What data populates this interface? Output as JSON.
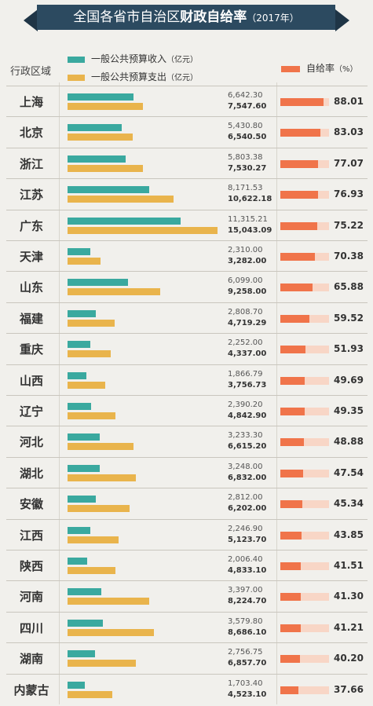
{
  "header": {
    "title_prefix": "全国各省市自治区",
    "title_emph": "财政自给率",
    "title_year": "（2017年）"
  },
  "columns": {
    "region": "行政区域",
    "ratio": "自给率",
    "ratio_unit": "（%）"
  },
  "legend": {
    "income": "一般公共预算收入",
    "expenditure": "一般公共预算支出",
    "unit": "（亿元）"
  },
  "colors": {
    "income": "#3aa99f",
    "expenditure": "#e9b44c",
    "ratio": "#f0744a",
    "ratio_bg": "#f8d6c6",
    "banner": "#2c4a60"
  },
  "chart_data": {
    "type": "bar",
    "categories": [
      "上海",
      "北京",
      "浙江",
      "江苏",
      "广东",
      "天津",
      "山东",
      "福建",
      "重庆",
      "山西",
      "辽宁",
      "河北",
      "湖北",
      "安徽",
      "江西",
      "陕西",
      "河南",
      "四川",
      "湖南",
      "内蒙古"
    ],
    "series": [
      {
        "name": "一般公共预算收入",
        "values": [
          "6,642.30",
          "5,430.80",
          "5,803.38",
          "8,171.53",
          "11,315.21",
          "2,310.00",
          "6,099.00",
          "2,808.70",
          "2,252.00",
          "1,866.79",
          "2,390.20",
          "3,233.30",
          "3,248.00",
          "2,812.00",
          "2,246.90",
          "2,006.40",
          "3,397.00",
          "3,579.80",
          "2,756.75",
          "1,703.40"
        ]
      },
      {
        "name": "一般公共预算支出",
        "values": [
          "7,547.60",
          "6,540.50",
          "7,530.27",
          "10,622.18",
          "15,043.09",
          "3,282.00",
          "9,258.00",
          "4,719.29",
          "4,337.00",
          "3,756.73",
          "4,842.90",
          "6,615.20",
          "6,832.00",
          "6,202.00",
          "5,123.70",
          "4,833.10",
          "8,224.70",
          "8,686.10",
          "6,857.70",
          "4,523.10"
        ]
      },
      {
        "name": "自给率",
        "values": [
          "88.01",
          "83.03",
          "77.07",
          "76.93",
          "75.22",
          "70.38",
          "65.88",
          "59.52",
          "51.93",
          "49.69",
          "49.35",
          "48.88",
          "47.54",
          "45.34",
          "43.85",
          "41.51",
          "41.30",
          "41.21",
          "40.20",
          "37.66"
        ]
      }
    ]
  }
}
